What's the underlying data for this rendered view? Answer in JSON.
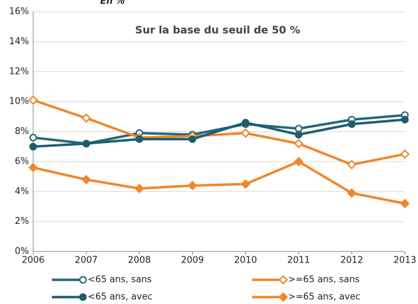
{
  "chart_data": {
    "type": "line",
    "title": "En %",
    "annotation": "Sur la base du seuil de 50 %",
    "x": [
      2006,
      2007,
      2008,
      2009,
      2010,
      2011,
      2012,
      2013
    ],
    "xlim": [
      2006,
      2013
    ],
    "xticks": [
      2006,
      2007,
      2008,
      2009,
      2010,
      2011,
      2012,
      2013
    ],
    "ylim": [
      0,
      16
    ],
    "yticks": [
      {
        "value": 0,
        "label": "0%"
      },
      {
        "value": 2,
        "label": "2%"
      },
      {
        "value": 4,
        "label": "4%"
      },
      {
        "value": 6,
        "label": "6%"
      },
      {
        "value": 8,
        "label": "8%"
      },
      {
        "value": 10,
        "label": "10%"
      },
      {
        "value": 12,
        "label": "12%"
      },
      {
        "value": 14,
        "label": "14%"
      },
      {
        "value": 16,
        "label": "16%"
      }
    ],
    "grid": true,
    "series": [
      {
        "name": "<65 ans, sans",
        "color": "#23687a",
        "marker": "circle",
        "filled": false,
        "values": [
          7.6,
          7.2,
          7.9,
          7.8,
          8.5,
          8.2,
          8.8,
          9.1
        ]
      },
      {
        "name": ">=65 ans, sans",
        "color": "#f0862a",
        "marker": "diamond",
        "filled": false,
        "values": [
          10.1,
          8.9,
          7.6,
          7.7,
          7.9,
          7.2,
          5.8,
          6.5
        ]
      },
      {
        "name": "<65 ans, avec",
        "color": "#1d5d6e",
        "marker": "circle",
        "filled": true,
        "values": [
          7.0,
          7.2,
          7.5,
          7.5,
          8.6,
          7.8,
          8.5,
          8.8
        ]
      },
      {
        "name": ">=65 ans, avec",
        "color": "#f0862a",
        "marker": "diamond",
        "filled": true,
        "values": [
          5.6,
          4.8,
          4.2,
          4.4,
          4.5,
          6.0,
          3.9,
          3.2
        ]
      }
    ]
  }
}
